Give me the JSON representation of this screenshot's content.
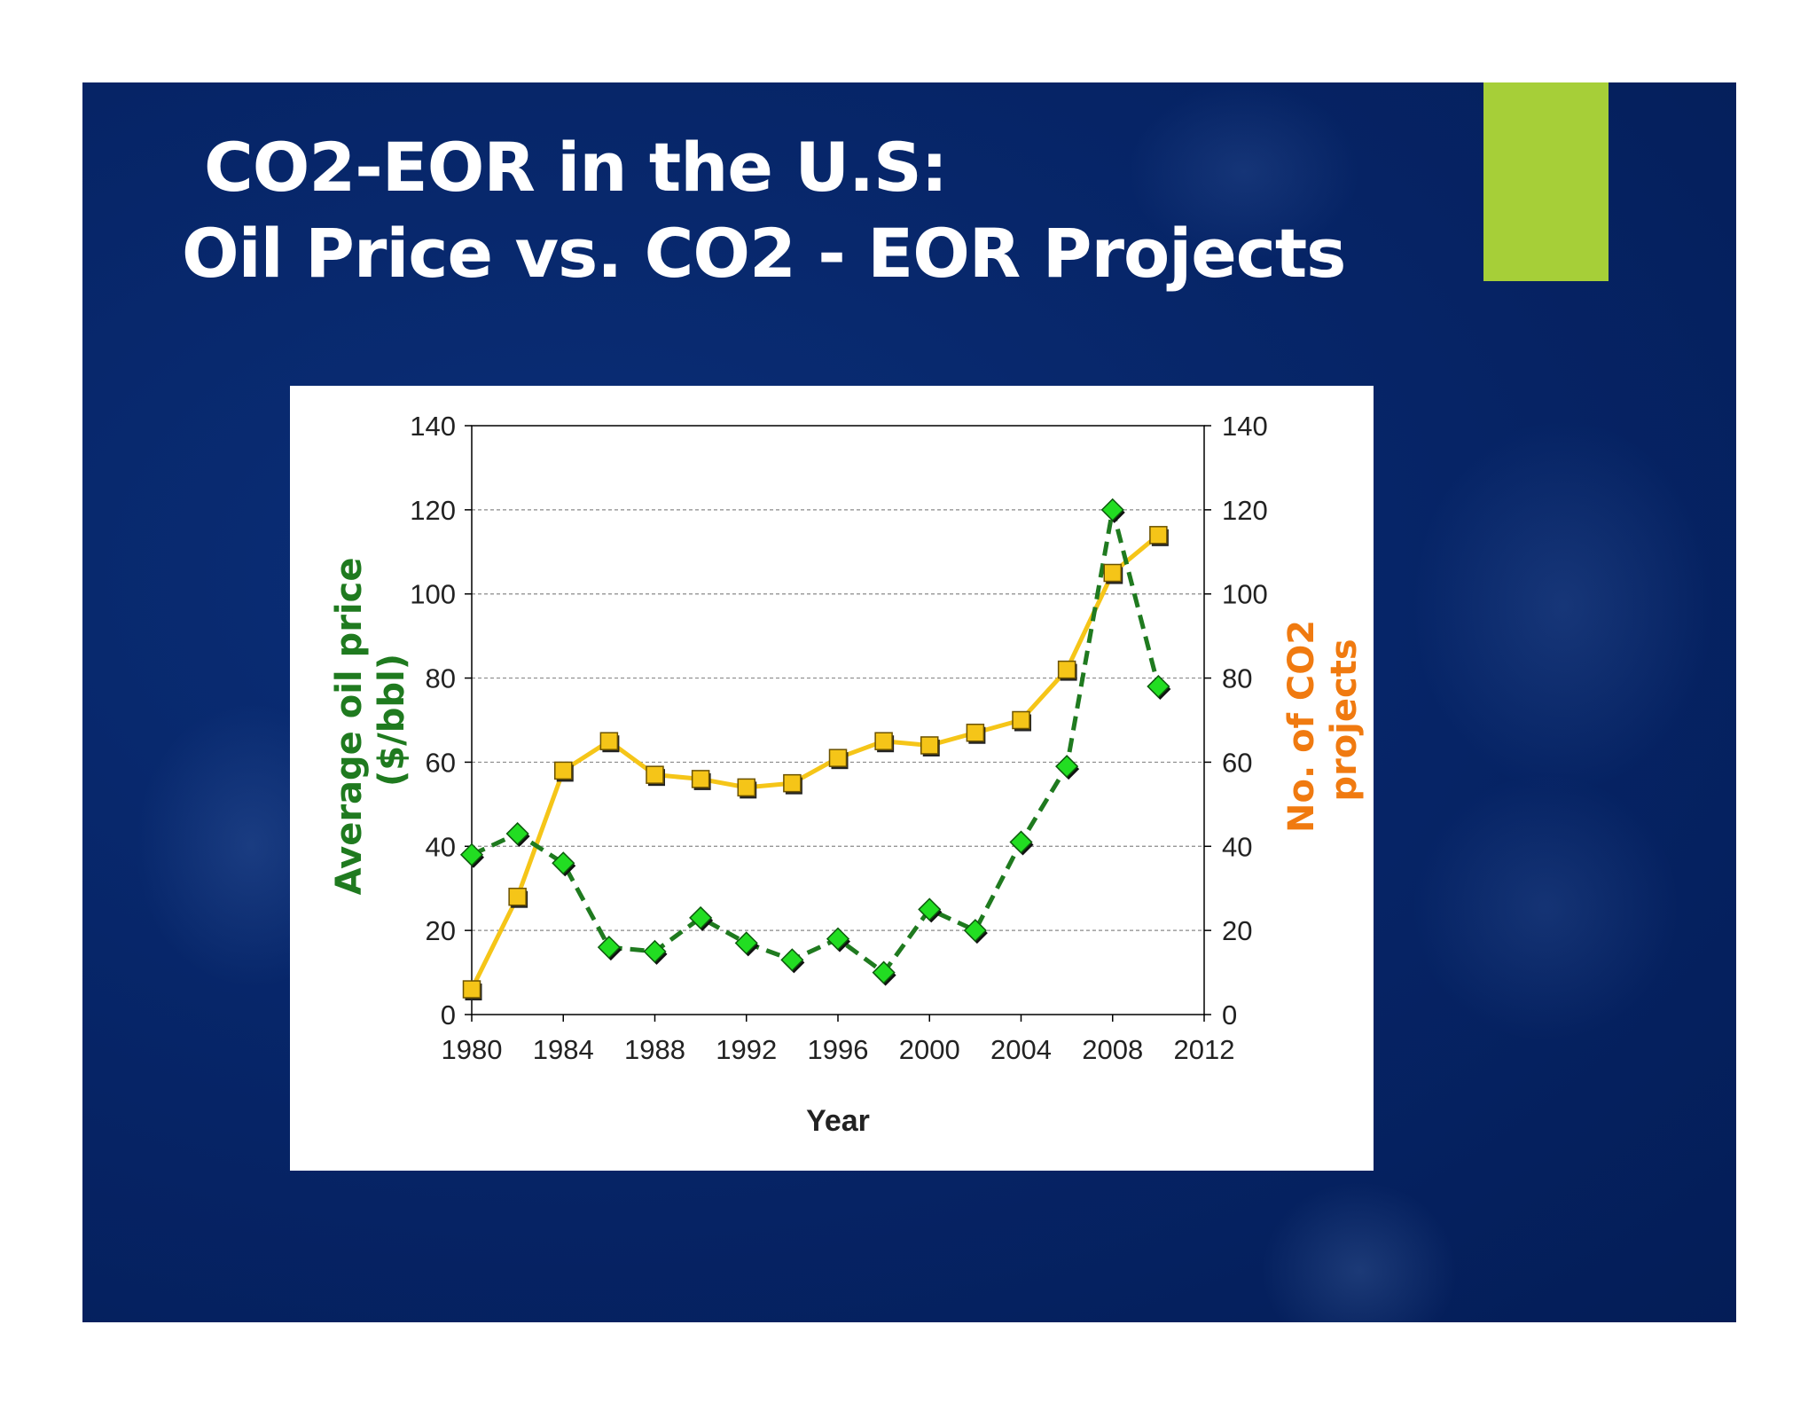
{
  "title": {
    "line1": "CO2-EOR in the U.S:",
    "line2": "Oil Price vs. CO2 - EOR Projects"
  },
  "colors": {
    "slide_background": "#062466",
    "accent": "#a6cf38",
    "oil_price_line": "#1f7a1f",
    "oil_price_marker": "#22dd22",
    "projects_line": "#f5c518",
    "projects_marker": "#f5c518",
    "left_axis_label": "#1f7a1f",
    "right_axis_label": "#f07a10"
  },
  "chart_data": {
    "type": "line",
    "xlabel": "Year",
    "ylabel_left": "Average oil price ($/bbl)",
    "ylabel_left_lines": [
      "Average oil price",
      "($/bbl)"
    ],
    "ylabel_right": "No. of CO2 projects",
    "ylabel_right_lines": [
      "No. of CO2",
      "projects"
    ],
    "xlim": [
      1980,
      2012
    ],
    "xticks": [
      "1980",
      "1984",
      "1988",
      "1992",
      "1996",
      "2000",
      "2004",
      "2008",
      "2012"
    ],
    "ylim": [
      0,
      140
    ],
    "yticks": [
      "0",
      "20",
      "40",
      "60",
      "80",
      "100",
      "120",
      "140"
    ],
    "grid": "horizontal dashed",
    "series": [
      {
        "axis": "left",
        "style": "dashed line, green diamond markers",
        "x": [
          1980,
          1982,
          1984,
          1986,
          1988,
          1990,
          1992,
          1994,
          1996,
          1998,
          2000,
          2002,
          2004,
          2006,
          2008,
          2010
        ],
        "values": [
          38,
          43,
          36,
          16,
          15,
          23,
          17,
          13,
          18,
          10,
          25,
          20,
          41,
          59,
          120,
          78
        ]
      },
      {
        "axis": "right",
        "style": "solid line, yellow square markers",
        "x": [
          1980,
          1982,
          1984,
          1986,
          1988,
          1990,
          1992,
          1994,
          1996,
          1998,
          2000,
          2002,
          2004,
          2006,
          2008,
          2010
        ],
        "values": [
          6,
          28,
          58,
          65,
          57,
          56,
          54,
          55,
          61,
          65,
          64,
          67,
          70,
          82,
          105,
          114
        ]
      }
    ]
  }
}
